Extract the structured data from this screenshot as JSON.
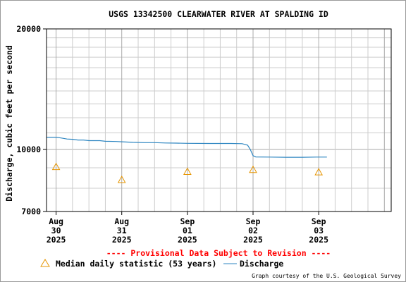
{
  "chart_data": {
    "type": "line",
    "title": "USGS 13342500 CLEARWATER RIVER AT SPALDING ID",
    "ylabel": "Discharge, cubic feet per second",
    "xlabel": "",
    "y_scale": "log",
    "ylim": [
      7000,
      20000
    ],
    "y_ticks": [
      "20000",
      "10000",
      "7000"
    ],
    "xlim": [
      "2025-08-29T20:30",
      "2025-09-04T02:30"
    ],
    "x_ticks": [
      {
        "date": "2025-08-30T00:00",
        "label": [
          "Aug",
          "30",
          "2025"
        ]
      },
      {
        "date": "2025-08-31T00:00",
        "label": [
          "Aug",
          "31",
          "2025"
        ]
      },
      {
        "date": "2025-09-01T00:00",
        "label": [
          "Sep",
          "01",
          "2025"
        ]
      },
      {
        "date": "2025-09-02T00:00",
        "label": [
          "Sep",
          "02",
          "2025"
        ]
      },
      {
        "date": "2025-09-03T00:00",
        "label": [
          "Sep",
          "03",
          "2025"
        ]
      }
    ],
    "grid": true,
    "series": [
      {
        "name": "Discharge",
        "type": "line",
        "color": "#2e86c1",
        "points": [
          [
            "2025-08-29T20:30",
            10730
          ],
          [
            "2025-08-30T00:00",
            10730
          ],
          [
            "2025-08-30T02:00",
            10680
          ],
          [
            "2025-08-30T04:00",
            10620
          ],
          [
            "2025-08-30T06:00",
            10600
          ],
          [
            "2025-08-30T08:00",
            10560
          ],
          [
            "2025-08-30T10:00",
            10560
          ],
          [
            "2025-08-30T12:00",
            10520
          ],
          [
            "2025-08-30T16:00",
            10520
          ],
          [
            "2025-08-30T18:00",
            10480
          ],
          [
            "2025-08-30T22:00",
            10470
          ],
          [
            "2025-08-31T00:00",
            10450
          ],
          [
            "2025-08-31T04:00",
            10420
          ],
          [
            "2025-08-31T08:00",
            10400
          ],
          [
            "2025-08-31T12:00",
            10400
          ],
          [
            "2025-08-31T16:00",
            10380
          ],
          [
            "2025-08-31T20:00",
            10370
          ],
          [
            "2025-09-01T00:00",
            10360
          ],
          [
            "2025-09-01T08:00",
            10350
          ],
          [
            "2025-09-01T16:00",
            10350
          ],
          [
            "2025-09-01T20:00",
            10340
          ],
          [
            "2025-09-01T22:00",
            10250
          ],
          [
            "2025-09-01T23:00",
            10000
          ],
          [
            "2025-09-02T00:00",
            9650
          ],
          [
            "2025-09-02T01:00",
            9580
          ],
          [
            "2025-09-02T06:00",
            9570
          ],
          [
            "2025-09-02T12:00",
            9560
          ],
          [
            "2025-09-02T18:00",
            9560
          ],
          [
            "2025-09-02T23:00",
            9570
          ],
          [
            "2025-09-03T03:00",
            9570
          ]
        ]
      }
    ],
    "median_daily_statistic": {
      "name": "Median daily statistic (53 years)",
      "marker": "triangle",
      "color": "#e69500",
      "points": [
        [
          "2025-08-30T00:00",
          9050
        ],
        [
          "2025-08-31T00:00",
          8400
        ],
        [
          "2025-09-01T00:00",
          8800
        ],
        [
          "2025-09-02T00:00",
          8900
        ],
        [
          "2025-09-03T00:00",
          8780
        ]
      ]
    },
    "annotations": {
      "provisional": "---- Provisional Data Subject to Revision ----",
      "provisional_color": "#ff0000",
      "credit": "Graph courtesy of the U.S. Geological Survey"
    },
    "legend": {
      "placement": "bottom",
      "median_label": "Median daily statistic (53 years)",
      "discharge_label": "Discharge"
    }
  }
}
